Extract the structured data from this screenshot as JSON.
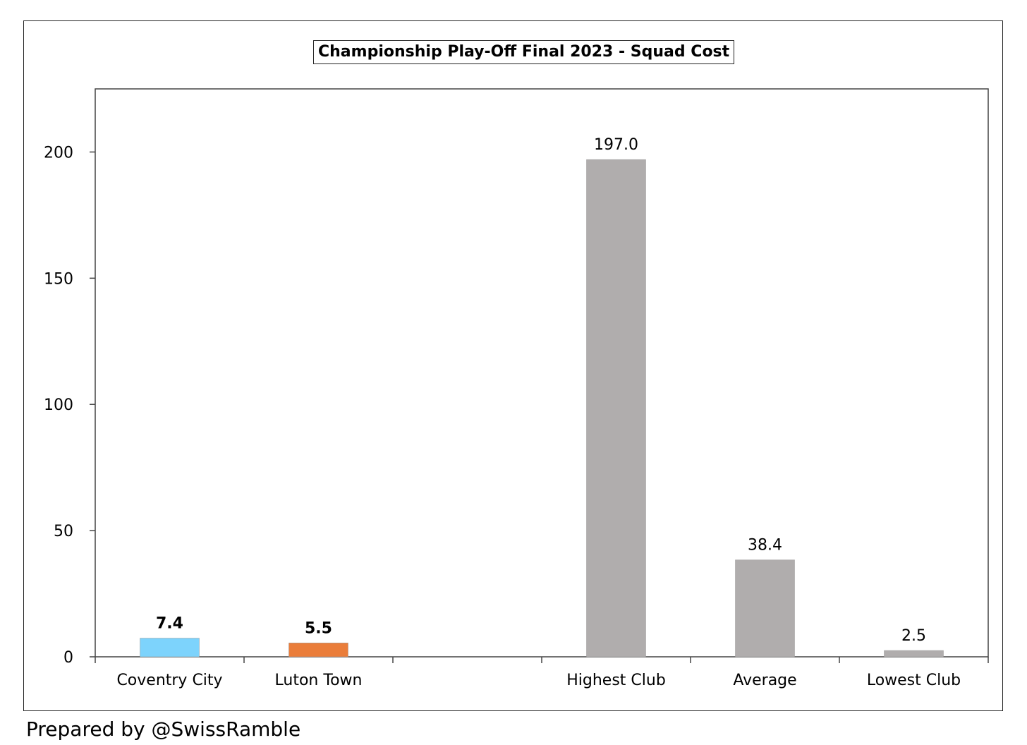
{
  "chart_data": {
    "type": "bar",
    "title": "Championship Play-Off Final 2023 - Squad Cost",
    "xlabel": "",
    "ylabel": "",
    "ylim": [
      0,
      225
    ],
    "yticks": [
      0,
      50,
      100,
      150,
      200
    ],
    "grid": false,
    "legend": "none",
    "categories": [
      "Coventry City",
      "Luton Town",
      "",
      "Highest Club",
      "Average",
      "Lowest Club"
    ],
    "values": [
      7.4,
      5.5,
      null,
      197.0,
      38.4,
      2.5
    ],
    "value_labels": [
      "7.4",
      "5.5",
      "",
      "197.0",
      "38.4",
      "2.5"
    ],
    "label_bold": [
      true,
      true,
      false,
      false,
      false,
      false
    ],
    "colors": [
      "#7dd3fc",
      "#ea7d3a",
      "#ffffff",
      "#b0adad",
      "#b0adad",
      "#b0adad"
    ]
  },
  "footer": {
    "credit": "Prepared by @SwissRamble"
  }
}
